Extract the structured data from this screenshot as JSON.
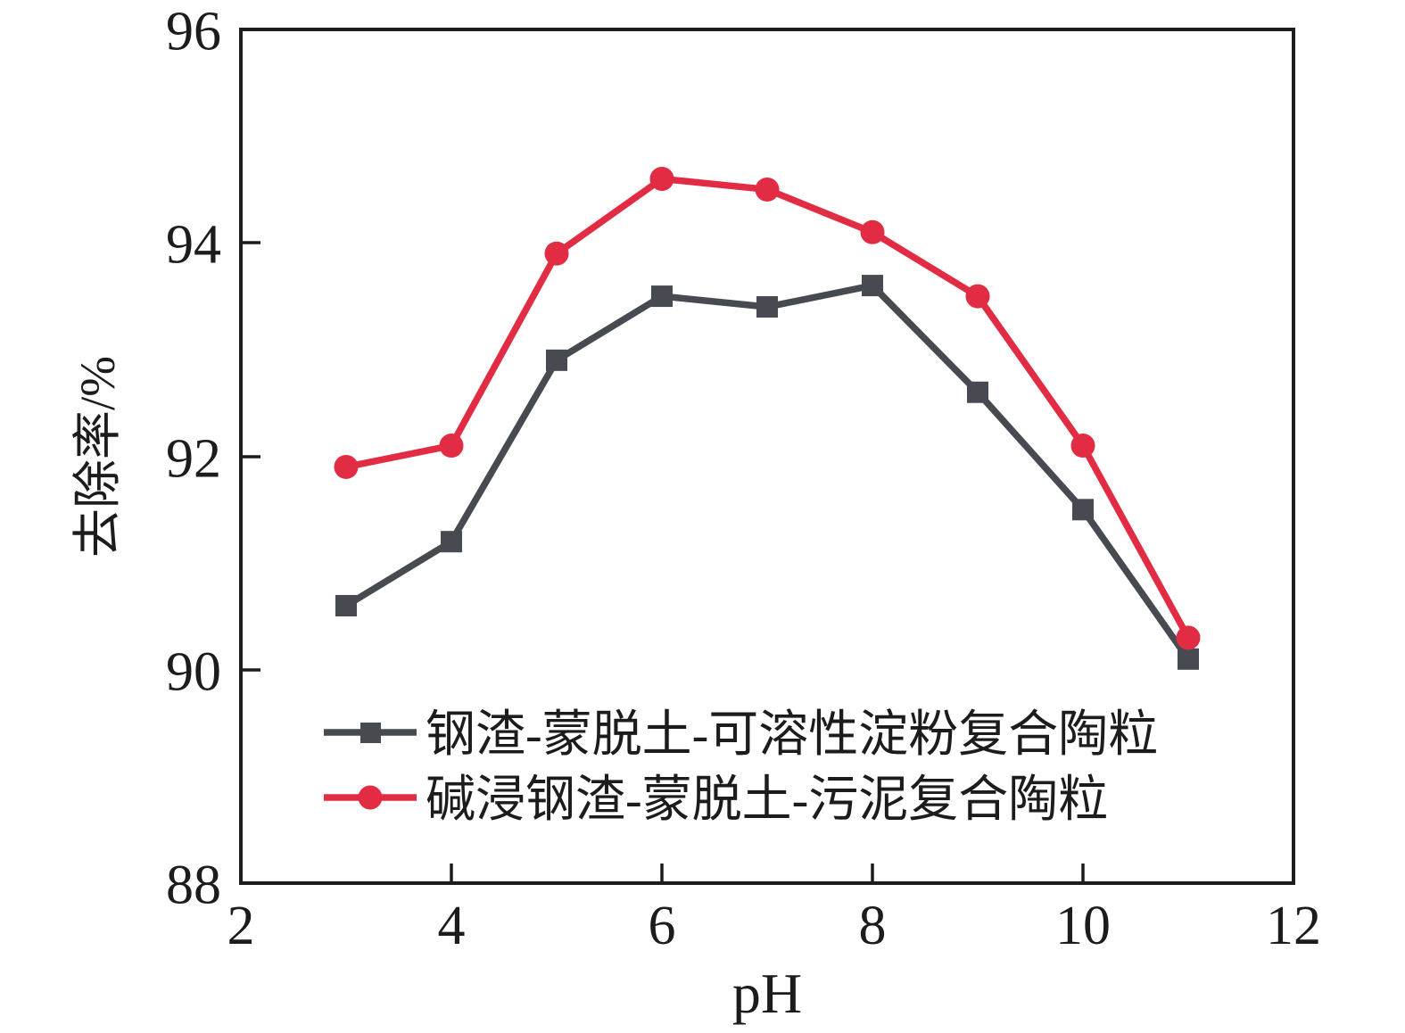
{
  "chart_data": {
    "type": "line",
    "title": "",
    "xlabel": "pH",
    "ylabel": "去除率/%",
    "xlim": [
      2,
      12
    ],
    "ylim": [
      88,
      96
    ],
    "x_ticks": [
      2,
      4,
      6,
      8,
      10,
      12
    ],
    "y_ticks": [
      88,
      90,
      92,
      94,
      96
    ],
    "grid": false,
    "legend_position": "inside lower-left",
    "x": [
      3,
      4,
      5,
      6,
      7,
      8,
      9,
      10,
      11
    ],
    "series": [
      {
        "name": "钢渣-蒙脱土-可溶性淀粉复合陶粒",
        "marker": "square",
        "color": "#474a50",
        "values": [
          90.6,
          91.2,
          92.9,
          93.5,
          93.4,
          93.6,
          92.6,
          91.5,
          90.1
        ]
      },
      {
        "name": "碱浸钢渣-蒙脱土-污泥复合陶粒",
        "marker": "circle",
        "color": "#e12c43",
        "values": [
          91.9,
          92.1,
          93.9,
          94.6,
          94.5,
          94.1,
          93.5,
          92.1,
          90.3
        ]
      }
    ]
  }
}
